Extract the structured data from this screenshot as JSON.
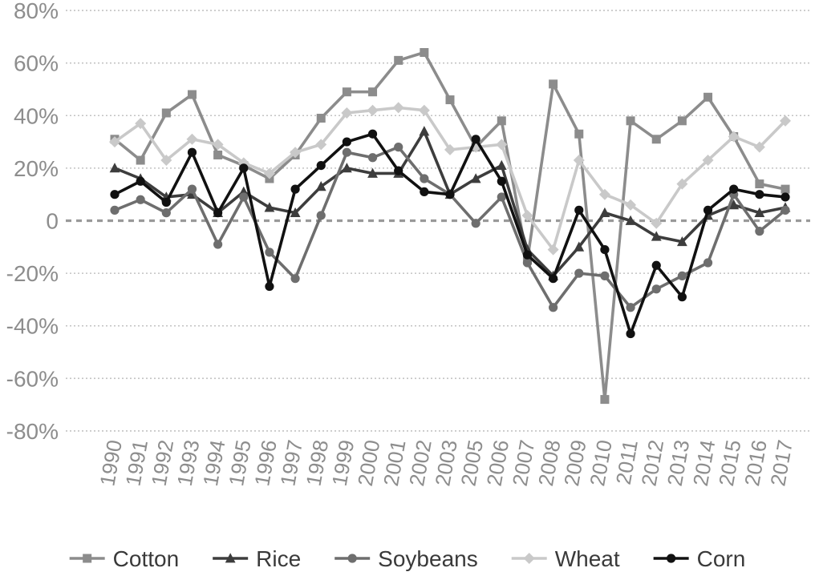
{
  "chart_data": {
    "type": "line",
    "title": "",
    "xlabel": "",
    "ylabel": "",
    "categories": [
      "1990",
      "1991",
      "1992",
      "1993",
      "1994",
      "1995",
      "1996",
      "1997",
      "1998",
      "1999",
      "2000",
      "2001",
      "2002",
      "2003",
      "2005",
      "2006",
      "2007",
      "2008",
      "2009",
      "2010",
      "2011",
      "2012",
      "2013",
      "2014",
      "2015",
      "2016",
      "2017"
    ],
    "series": [
      {
        "name": "Cotton",
        "marker": "square",
        "color": "#8c8c8c",
        "values": [
          31,
          23,
          41,
          48,
          25,
          21,
          16,
          25,
          39,
          49,
          49,
          61,
          64,
          46,
          28,
          38,
          -15,
          52,
          33,
          -68,
          38,
          31,
          38,
          47,
          32,
          14,
          12
        ]
      },
      {
        "name": "Rice",
        "marker": "triangle",
        "color": "#3d3d3d",
        "values": [
          20,
          16,
          9,
          10,
          3,
          11,
          5,
          3,
          13,
          20,
          18,
          18,
          34,
          10,
          16,
          21,
          -11,
          -21,
          -10,
          3,
          0,
          -6,
          -8,
          2,
          6,
          3,
          5
        ]
      },
      {
        "name": "Soybeans",
        "marker": "circle",
        "color": "#6e6e6e",
        "values": [
          4,
          8,
          3,
          12,
          -9,
          9,
          -12,
          -22,
          2,
          26,
          24,
          28,
          16,
          10,
          -1,
          9,
          -16,
          -33,
          -20,
          -21,
          -33,
          -26,
          -21,
          -16,
          10,
          -4,
          4
        ]
      },
      {
        "name": "Wheat",
        "marker": "diamond",
        "color": "#c9c9c9",
        "values": [
          30,
          37,
          23,
          31,
          29,
          22,
          18,
          26,
          29,
          41,
          42,
          43,
          42,
          27,
          28,
          29,
          2,
          -11,
          23,
          10,
          6,
          -1,
          14,
          23,
          32,
          28,
          38
        ]
      },
      {
        "name": "Corn",
        "marker": "circle",
        "color": "#111111",
        "values": [
          10,
          15,
          7,
          26,
          3,
          20,
          -25,
          12,
          21,
          30,
          33,
          19,
          11,
          10,
          31,
          15,
          -13,
          -22,
          4,
          -11,
          -43,
          -17,
          -29,
          4,
          12,
          10,
          9
        ]
      }
    ],
    "y_axis": {
      "tick_labels": [
        "80%",
        "60%",
        "40%",
        "20%",
        "0",
        "-20%",
        "-40%",
        "-60%",
        "-80%"
      ],
      "tick_values": [
        80,
        60,
        40,
        20,
        0,
        -20,
        -40,
        -60,
        -80
      ],
      "min": -80,
      "max": 80
    },
    "grid": "horizontal",
    "gridline_style": "dotted",
    "zero_line_style": "bold-dashed",
    "legend_position": "bottom",
    "colors": {
      "axis_labels": "#8d8d8d",
      "gridline": "#c3c3c3",
      "zero_line": "#999999",
      "legend_text": "#3a3a3a",
      "background": "#ffffff"
    }
  }
}
